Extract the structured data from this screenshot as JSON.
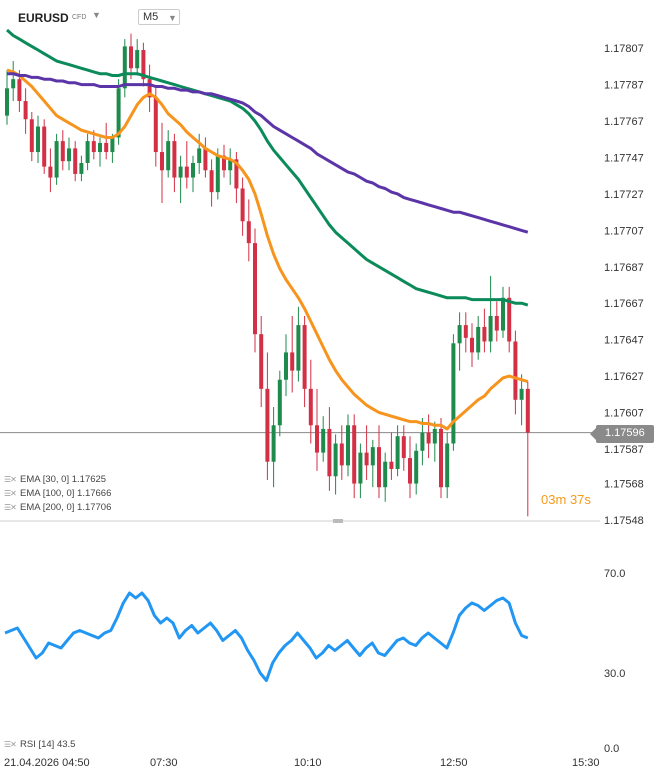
{
  "header": {
    "symbol": "EURUSD",
    "instrument_type": "CFD",
    "timeframe": "M5"
  },
  "price": {
    "current": "1.17596",
    "countdown_min": "03",
    "countdown_min_unit": "m",
    "countdown_sec": "37",
    "countdown_sec_unit": "s"
  },
  "indicators": [
    {
      "label": "EMA [30, 0] 1.17625",
      "color": "#f7941d"
    },
    {
      "label": "EMA [100, 0] 1.17666",
      "color": "#0b8a5a"
    },
    {
      "label": "EMA [200, 0] 1.17706",
      "color": "#5b35a8"
    }
  ],
  "rsi_label": "RSI [14] 43.5",
  "colors": {
    "up": "#1e8a4c",
    "down": "#d32f45",
    "rsi": "#2196f3"
  },
  "chart_data": [
    {
      "type": "candlestick",
      "y_ticks": [
        "1.17807",
        "1.17787",
        "1.17767",
        "1.17747",
        "1.17727",
        "1.17707",
        "1.17687",
        "1.17667",
        "1.17647",
        "1.17627",
        "1.17607",
        "1.17587",
        "1.17568",
        "1.17548"
      ],
      "x_ticks": [
        "21.04.2026 04:50",
        "07:30",
        "10:10",
        "12:50",
        "15:30"
      ],
      "ylim": [
        1.17548,
        1.17817
      ],
      "current_price": 1.17596,
      "ohlc": [
        [
          1.1777,
          1.17795,
          1.17765,
          1.17785
        ],
        [
          1.17785,
          1.178,
          1.17778,
          1.1779
        ],
        [
          1.1779,
          1.17795,
          1.17772,
          1.17778
        ],
        [
          1.17778,
          1.17785,
          1.1776,
          1.17768
        ],
        [
          1.17768,
          1.17772,
          1.17745,
          1.1775
        ],
        [
          1.1775,
          1.1777,
          1.17744,
          1.17764
        ],
        [
          1.17764,
          1.17768,
          1.17738,
          1.17742
        ],
        [
          1.17742,
          1.17752,
          1.17728,
          1.17736
        ],
        [
          1.17736,
          1.1776,
          1.17732,
          1.17756
        ],
        [
          1.17756,
          1.17762,
          1.1774,
          1.17745
        ],
        [
          1.17745,
          1.17758,
          1.1774,
          1.17752
        ],
        [
          1.17752,
          1.17756,
          1.17734,
          1.17738
        ],
        [
          1.17738,
          1.17748,
          1.17734,
          1.17744
        ],
        [
          1.17744,
          1.1776,
          1.1774,
          1.17756
        ],
        [
          1.17756,
          1.17762,
          1.17746,
          1.1775
        ],
        [
          1.1775,
          1.17758,
          1.17742,
          1.17755
        ],
        [
          1.17755,
          1.17766,
          1.17746,
          1.1775
        ],
        [
          1.1775,
          1.1776,
          1.17744,
          1.17758
        ],
        [
          1.17758,
          1.1779,
          1.17754,
          1.17785
        ],
        [
          1.17785,
          1.17812,
          1.1778,
          1.17808
        ],
        [
          1.17808,
          1.17815,
          1.1779,
          1.17796
        ],
        [
          1.17796,
          1.17812,
          1.17792,
          1.17806
        ],
        [
          1.17806,
          1.1781,
          1.17786,
          1.1779
        ],
        [
          1.1779,
          1.17798,
          1.17772,
          1.1778
        ],
        [
          1.1778,
          1.17786,
          1.17742,
          1.1775
        ],
        [
          1.1775,
          1.17766,
          1.17722,
          1.1774
        ],
        [
          1.1774,
          1.17762,
          1.17736,
          1.17756
        ],
        [
          1.17756,
          1.1776,
          1.17728,
          1.17736
        ],
        [
          1.17736,
          1.17748,
          1.17722,
          1.17742
        ],
        [
          1.17742,
          1.17756,
          1.1773,
          1.17736
        ],
        [
          1.17736,
          1.17748,
          1.17728,
          1.17744
        ],
        [
          1.17744,
          1.1776,
          1.17738,
          1.17752
        ],
        [
          1.17752,
          1.17758,
          1.17736,
          1.1774
        ],
        [
          1.1774,
          1.17746,
          1.1772,
          1.17728
        ],
        [
          1.17728,
          1.17752,
          1.17724,
          1.17748
        ],
        [
          1.17748,
          1.17754,
          1.17736,
          1.1774
        ],
        [
          1.1774,
          1.17752,
          1.17732,
          1.17746
        ],
        [
          1.17746,
          1.1775,
          1.17722,
          1.1773
        ],
        [
          1.1773,
          1.17736,
          1.17704,
          1.17712
        ],
        [
          1.17712,
          1.17724,
          1.1769,
          1.177
        ],
        [
          1.177,
          1.17708,
          1.1764,
          1.1765
        ],
        [
          1.1765,
          1.1766,
          1.1761,
          1.1762
        ],
        [
          1.1762,
          1.1764,
          1.1757,
          1.1758
        ],
        [
          1.1758,
          1.1761,
          1.17566,
          1.176
        ],
        [
          1.176,
          1.1763,
          1.17594,
          1.17625
        ],
        [
          1.17625,
          1.1765,
          1.17616,
          1.1764
        ],
        [
          1.1764,
          1.1766,
          1.17618,
          1.1763
        ],
        [
          1.1763,
          1.17665,
          1.17624,
          1.17655
        ],
        [
          1.17655,
          1.1766,
          1.1761,
          1.1762
        ],
        [
          1.1762,
          1.17636,
          1.1759,
          1.176
        ],
        [
          1.176,
          1.1762,
          1.17575,
          1.17585
        ],
        [
          1.17585,
          1.17605,
          1.1758,
          1.17598
        ],
        [
          1.17598,
          1.1761,
          1.17564,
          1.17572
        ],
        [
          1.17572,
          1.17595,
          1.17562,
          1.1759
        ],
        [
          1.1759,
          1.176,
          1.1757,
          1.17578
        ],
        [
          1.17578,
          1.17606,
          1.17572,
          1.176
        ],
        [
          1.176,
          1.17606,
          1.1756,
          1.17568
        ],
        [
          1.17568,
          1.1759,
          1.1756,
          1.17585
        ],
        [
          1.17585,
          1.176,
          1.1757,
          1.17578
        ],
        [
          1.17578,
          1.17592,
          1.17566,
          1.17588
        ],
        [
          1.17588,
          1.176,
          1.1756,
          1.17566
        ],
        [
          1.17566,
          1.17585,
          1.17558,
          1.1758
        ],
        [
          1.1758,
          1.17596,
          1.1757,
          1.17576
        ],
        [
          1.17576,
          1.176,
          1.17572,
          1.17594
        ],
        [
          1.17594,
          1.176,
          1.17575,
          1.17582
        ],
        [
          1.17582,
          1.17594,
          1.1756,
          1.17568
        ],
        [
          1.17568,
          1.1759,
          1.17562,
          1.17586
        ],
        [
          1.17586,
          1.17604,
          1.17578,
          1.17596
        ],
        [
          1.17596,
          1.17606,
          1.17582,
          1.1759
        ],
        [
          1.1759,
          1.17602,
          1.1758,
          1.17598
        ],
        [
          1.17598,
          1.17604,
          1.1756,
          1.17566
        ],
        [
          1.17566,
          1.17596,
          1.1756,
          1.1759
        ],
        [
          1.1759,
          1.1765,
          1.17586,
          1.17645
        ],
        [
          1.17645,
          1.17662,
          1.1763,
          1.17655
        ],
        [
          1.17655,
          1.17662,
          1.1764,
          1.17648
        ],
        [
          1.17648,
          1.17656,
          1.17632,
          1.1764
        ],
        [
          1.1764,
          1.1766,
          1.17636,
          1.17654
        ],
        [
          1.17654,
          1.17664,
          1.1764,
          1.17646
        ],
        [
          1.17646,
          1.17682,
          1.1764,
          1.1766
        ],
        [
          1.1766,
          1.17668,
          1.17646,
          1.17652
        ],
        [
          1.17652,
          1.17676,
          1.17648,
          1.1767
        ],
        [
          1.1767,
          1.17676,
          1.1764,
          1.17646
        ],
        [
          1.17646,
          1.17652,
          1.17606,
          1.17614
        ],
        [
          1.17614,
          1.17628,
          1.176,
          1.1762
        ],
        [
          1.1762,
          1.17624,
          1.1755,
          1.17596
        ]
      ],
      "series": [
        {
          "name": "EMA [30, 0]",
          "values": [
            1.17795,
            1.17794,
            1.17792,
            1.17789,
            1.17786,
            1.17782,
            1.17778,
            1.17774,
            1.1777,
            1.17768,
            1.17766,
            1.17764,
            1.17762,
            1.17761,
            1.1776,
            1.17759,
            1.17758,
            1.17758,
            1.1776,
            1.17764,
            1.1777,
            1.17776,
            1.1778,
            1.17782,
            1.1778,
            1.17776,
            1.17771,
            1.17768,
            1.17765,
            1.17761,
            1.17758,
            1.17755,
            1.17752,
            1.1775,
            1.17748,
            1.17747,
            1.17746,
            1.17744,
            1.1774,
            1.17735,
            1.17727,
            1.17716,
            1.17704,
            1.17694,
            1.17686,
            1.1768,
            1.17675,
            1.1767,
            1.17664,
            1.17657,
            1.1765,
            1.17643,
            1.17636,
            1.1763,
            1.17625,
            1.17621,
            1.17617,
            1.17614,
            1.17611,
            1.17609,
            1.17607,
            1.17606,
            1.17605,
            1.17604,
            1.17603,
            1.17602,
            1.17602,
            1.17601,
            1.17601,
            1.176,
            1.176,
            1.17598,
            1.17602,
            1.17605,
            1.17608,
            1.17611,
            1.17614,
            1.17616,
            1.1762,
            1.17623,
            1.17626,
            1.17627,
            1.17626,
            1.17625,
            1.17624
          ]
        },
        {
          "name": "EMA [100, 0]",
          "values": [
            1.17817,
            1.17814,
            1.17812,
            1.1781,
            1.17808,
            1.17806,
            1.17804,
            1.17802,
            1.178,
            1.17799,
            1.17798,
            1.17797,
            1.17796,
            1.17795,
            1.17794,
            1.17793,
            1.17793,
            1.17792,
            1.17792,
            1.17793,
            1.17793,
            1.17793,
            1.17792,
            1.17791,
            1.1779,
            1.17789,
            1.17788,
            1.17787,
            1.17786,
            1.17785,
            1.17784,
            1.17783,
            1.17782,
            1.17781,
            1.1778,
            1.17779,
            1.17778,
            1.17776,
            1.17774,
            1.17771,
            1.17767,
            1.17762,
            1.17756,
            1.17751,
            1.17747,
            1.17743,
            1.17739,
            1.17735,
            1.1773,
            1.17725,
            1.1772,
            1.17715,
            1.1771,
            1.17706,
            1.17703,
            1.177,
            1.17697,
            1.17694,
            1.17691,
            1.17689,
            1.17687,
            1.17685,
            1.17683,
            1.17681,
            1.17679,
            1.17677,
            1.17675,
            1.17674,
            1.17673,
            1.17672,
            1.17671,
            1.1767,
            1.1767,
            1.1767,
            1.1767,
            1.17669,
            1.17669,
            1.17669,
            1.17669,
            1.17669,
            1.17669,
            1.17668,
            1.17667,
            1.17667,
            1.17666
          ]
        },
        {
          "name": "EMA [200, 0]",
          "values": [
            1.17793,
            1.17793,
            1.17792,
            1.17792,
            1.17791,
            1.17791,
            1.1779,
            1.1779,
            1.17789,
            1.17789,
            1.17788,
            1.17788,
            1.17787,
            1.17787,
            1.17787,
            1.17786,
            1.17786,
            1.17786,
            1.17786,
            1.17787,
            1.17787,
            1.17787,
            1.17787,
            1.17787,
            1.17786,
            1.17786,
            1.17785,
            1.17785,
            1.17784,
            1.17784,
            1.17783,
            1.17783,
            1.17782,
            1.17782,
            1.17781,
            1.1778,
            1.17779,
            1.17778,
            1.17777,
            1.17775,
            1.17772,
            1.1777,
            1.17767,
            1.17764,
            1.17762,
            1.1776,
            1.17758,
            1.17756,
            1.17754,
            1.17752,
            1.17749,
            1.17747,
            1.17745,
            1.17743,
            1.17741,
            1.17739,
            1.17738,
            1.17736,
            1.17734,
            1.17733,
            1.17731,
            1.1773,
            1.17728,
            1.17727,
            1.17725,
            1.17724,
            1.17723,
            1.17722,
            1.17721,
            1.1772,
            1.17719,
            1.17718,
            1.17717,
            1.17717,
            1.17716,
            1.17715,
            1.17714,
            1.17713,
            1.17712,
            1.17711,
            1.1771,
            1.17709,
            1.17708,
            1.17707,
            1.17706
          ]
        }
      ]
    },
    {
      "type": "line",
      "name": "RSI [14]",
      "y_ticks": [
        "70.0",
        "30.0",
        "0.0"
      ],
      "ylim": [
        0,
        80
      ],
      "values": [
        46,
        47,
        48,
        44,
        40,
        36,
        38,
        42,
        41,
        40,
        43,
        46,
        47,
        46,
        45,
        44,
        46,
        47,
        52,
        58,
        62,
        60,
        62,
        59,
        53,
        50,
        52,
        50,
        44,
        47,
        49,
        46,
        48,
        50,
        47,
        43,
        45,
        47,
        44,
        39,
        35,
        30,
        27,
        34,
        38,
        41,
        43,
        46,
        43,
        40,
        36,
        38,
        41,
        39,
        41,
        43,
        40,
        37,
        40,
        42,
        38,
        37,
        40,
        43,
        44,
        42,
        41,
        44,
        46,
        44,
        42,
        40,
        46,
        53,
        56,
        58,
        57,
        55,
        57,
        59,
        60,
        58,
        50,
        45,
        44
      ]
    }
  ]
}
